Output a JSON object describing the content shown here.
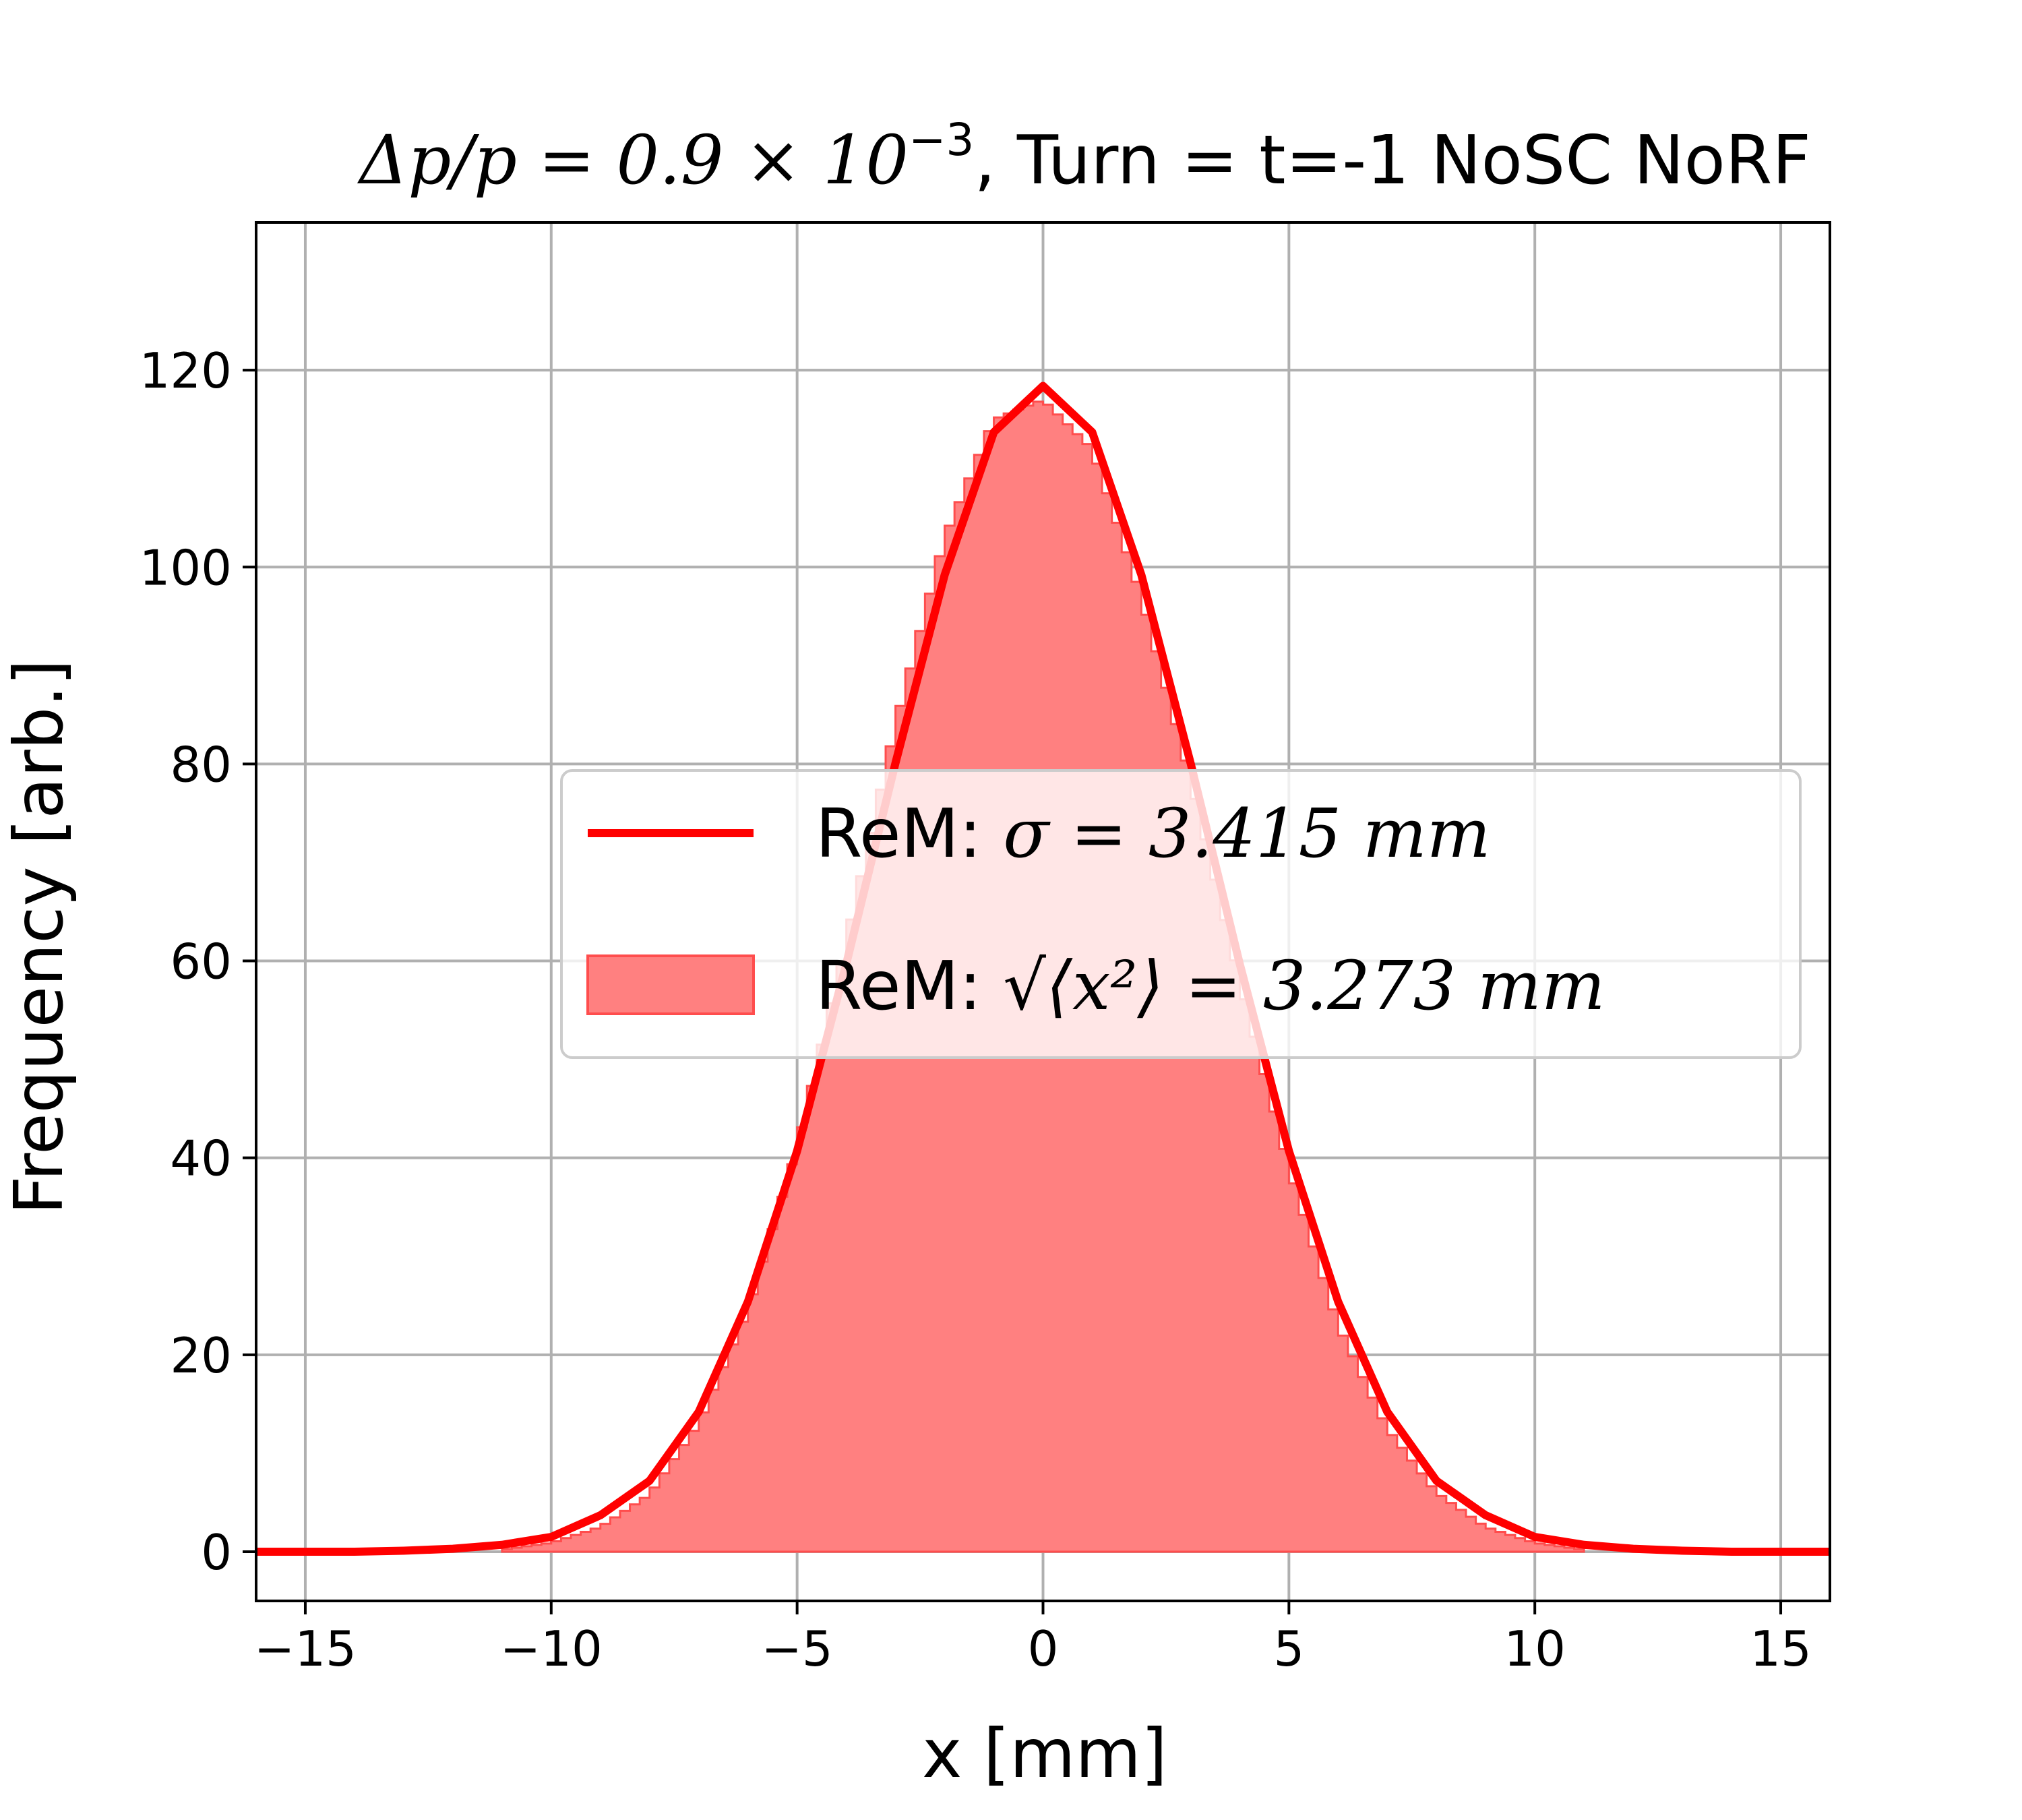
{
  "chart_data": {
    "type": "histogram",
    "title": {
      "prefix": "Δp/p = 0.9 × 10",
      "exponent": "−3",
      "suffix": ", Turn = t=-1 NoSC NoRF"
    },
    "xlabel": "x [mm]",
    "ylabel": "Frequency [arb.]",
    "xlim": [
      -16,
      16
    ],
    "ylim": [
      -5,
      135
    ],
    "xticks": [
      -15,
      -10,
      -5,
      0,
      5,
      10,
      15
    ],
    "xtick_labels": [
      "−15",
      "−10",
      "−5",
      "0",
      "5",
      "10",
      "15"
    ],
    "yticks": [
      0,
      20,
      40,
      60,
      80,
      100,
      120
    ],
    "ytick_labels": [
      "0",
      "20",
      "40",
      "60",
      "80",
      "100",
      "120"
    ],
    "grid": true,
    "legend": {
      "placement": "center-right",
      "entries": [
        {
          "label_prefix": "ReM: ",
          "label_math": "σ = 3.415 mm",
          "style": "line",
          "color": "#ff0000"
        },
        {
          "label_prefix": "ReM: ",
          "label_math": "√⟨x²⟩ = 3.273 mm",
          "style": "patch",
          "color": "#ff8080"
        }
      ]
    },
    "series": [
      {
        "name": "ReM: σ = 3.415 mm",
        "kind": "line",
        "color": "#ff0000",
        "x": [
          -16,
          -15,
          -14,
          -13,
          -12,
          -11,
          -10,
          -9,
          -8,
          -7,
          -6,
          -5,
          -4,
          -3,
          -2,
          -1,
          0,
          1,
          2,
          3,
          4,
          5,
          6,
          7,
          8,
          9,
          10,
          11,
          12,
          13,
          14,
          15,
          16
        ],
        "y": [
          0.0,
          0.0,
          0.0,
          0.1,
          0.3,
          0.7,
          1.5,
          3.7,
          7.2,
          14.2,
          25.4,
          40.7,
          59.7,
          80.1,
          99.2,
          113.7,
          118.4,
          113.7,
          99.2,
          80.1,
          59.7,
          40.7,
          25.4,
          14.2,
          7.2,
          3.7,
          1.5,
          0.7,
          0.3,
          0.1,
          0.0,
          0.0,
          0.0
        ]
      },
      {
        "name": "ReM: √⟨x²⟩ = 3.273 mm",
        "kind": "step-fill",
        "color": "#ff8080",
        "edge_color": "#ff4d4d",
        "x": [
          -11,
          -10,
          -9,
          -8,
          -7,
          -6,
          -5,
          -4,
          -3,
          -2,
          -1,
          0,
          1,
          2,
          3,
          4,
          5,
          6,
          7,
          8,
          9,
          10,
          11
        ],
        "y": [
          0.2,
          0.9,
          2.5,
          5.8,
          13.0,
          24.5,
          41.0,
          62.0,
          84.0,
          103.0,
          115.0,
          117.0,
          112.0,
          97.0,
          78.5,
          58.0,
          39.0,
          23.0,
          12.5,
          6.0,
          2.5,
          0.9,
          0.2
        ]
      }
    ]
  }
}
